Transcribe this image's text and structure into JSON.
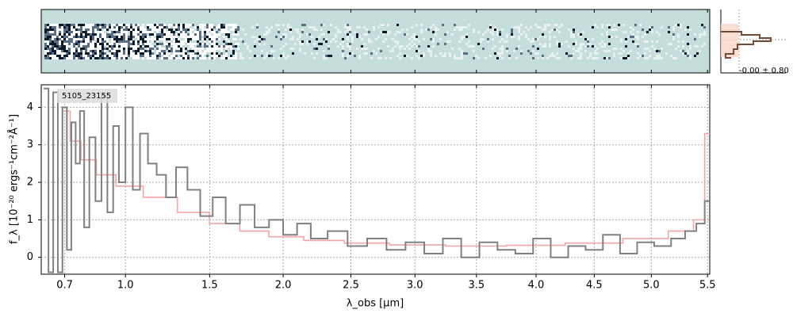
{
  "chart_data": {
    "type": "line",
    "label": "5105_23155",
    "hist_label": "-0.00 ± 0.80",
    "xlabel": "λ_obs [μm]",
    "ylabel": "f_λ [10⁻²⁰ ergs⁻¹cm⁻²Å⁻¹]",
    "xlim": [
      0.6,
      5.52
    ],
    "ylim": [
      -0.45,
      4.6
    ],
    "xticks": [
      0.7,
      {
        "value": 1,
        "label": "1.0"
      },
      1.5,
      {
        "value": 2,
        "label": "2.0"
      },
      2.5,
      {
        "value": 3,
        "label": "3.0"
      },
      3.5,
      {
        "value": 4,
        "label": "4.0"
      },
      4.5,
      {
        "value": 5,
        "label": "5.0"
      },
      5.5
    ],
    "yticks": [
      0,
      1,
      2,
      3,
      4
    ],
    "grid": true,
    "series": [
      {
        "color": "#808080",
        "x": [
          0.62,
          0.64,
          0.66,
          0.68,
          0.7,
          0.72,
          0.74,
          0.76,
          0.78,
          0.8,
          0.83,
          0.86,
          0.89,
          0.92,
          0.95,
          0.98,
          1.02,
          1.06,
          1.1,
          1.15,
          1.2,
          1.26,
          1.32,
          1.4,
          1.48,
          1.56,
          1.65,
          1.75,
          1.85,
          1.95,
          2.05,
          2.15,
          2.25,
          2.4,
          2.55,
          2.7,
          2.85,
          3.0,
          3.15,
          3.3,
          3.45,
          3.6,
          3.75,
          3.9,
          4.05,
          4.2,
          4.35,
          4.5,
          4.65,
          4.8,
          4.95,
          5.1,
          5.25,
          5.35,
          5.45,
          5.5
        ],
        "values": [
          4.5,
          -0.4,
          4.4,
          -0.4,
          4.0,
          0.2,
          3.6,
          2.5,
          3.9,
          0.8,
          3.2,
          1.5,
          4.3,
          1.2,
          3.5,
          2.0,
          4.0,
          1.8,
          3.3,
          2.5,
          2.2,
          1.6,
          2.4,
          1.8,
          1.1,
          1.6,
          0.9,
          1.4,
          0.8,
          1.0,
          0.6,
          0.9,
          0.5,
          0.7,
          0.3,
          0.5,
          0.2,
          0.4,
          0.1,
          0.5,
          0.0,
          0.4,
          0.2,
          0.1,
          0.5,
          0.0,
          0.3,
          0.2,
          0.6,
          0.1,
          0.4,
          0.3,
          0.5,
          0.7,
          0.9,
          1.5
        ]
      },
      {
        "color": "#f4a6a6",
        "x": [
          0.7,
          0.75,
          0.8,
          0.9,
          1.0,
          1.2,
          1.4,
          1.6,
          1.8,
          2.0,
          2.3,
          2.6,
          3.0,
          3.5,
          4.0,
          4.5,
          5.0,
          5.3,
          5.45,
          5.5
        ],
        "values": [
          3.9,
          3.1,
          2.6,
          2.2,
          1.9,
          1.6,
          1.2,
          0.9,
          0.7,
          0.55,
          0.45,
          0.38,
          0.33,
          0.3,
          0.32,
          0.38,
          0.5,
          0.7,
          1.0,
          3.3
        ]
      }
    ]
  }
}
